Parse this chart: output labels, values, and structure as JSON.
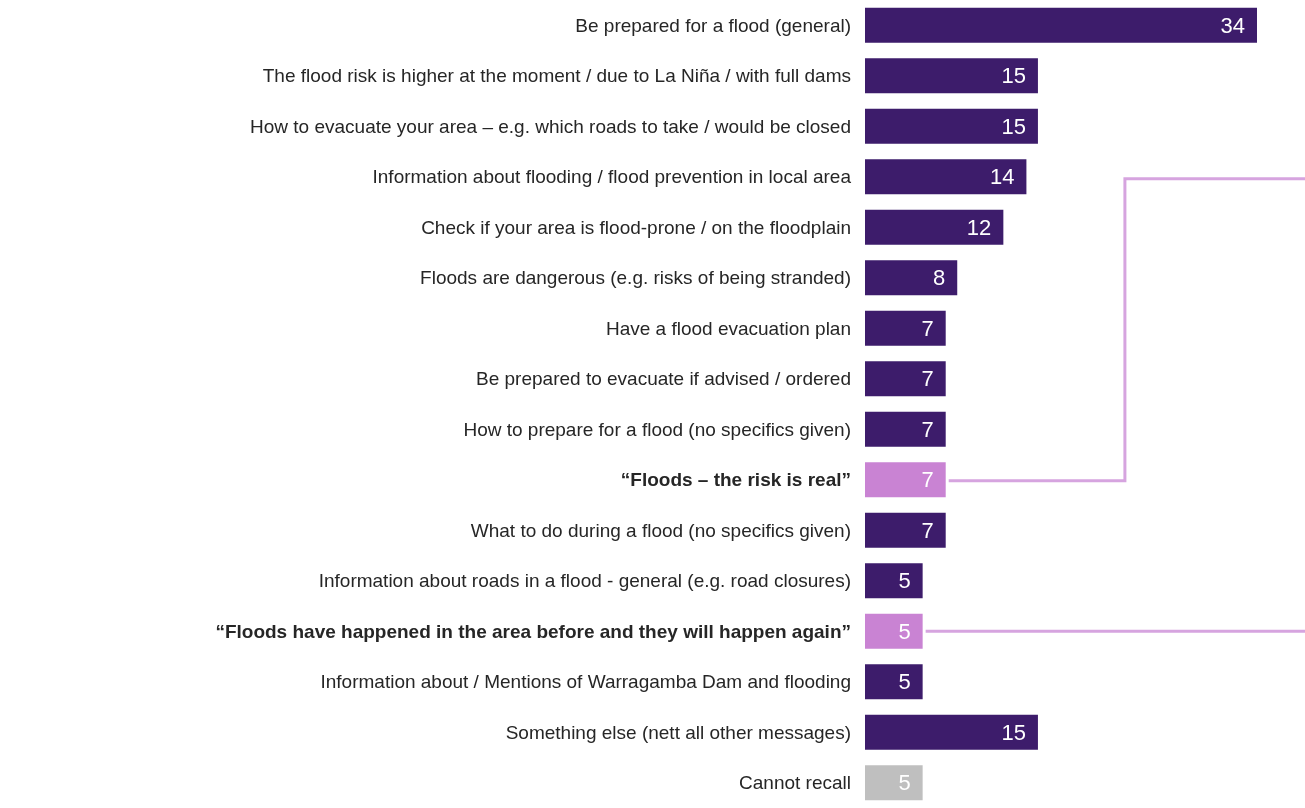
{
  "chart_data": {
    "type": "bar",
    "orientation": "horizontal",
    "data_labels": true,
    "grid": false,
    "categories": [
      "Be prepared for a flood (general)",
      "The flood risk is higher at the moment / due to La Niña / with full dams",
      "How to evacuate your area – e.g. which roads to take / would be closed",
      "Information about flooding / flood prevention in local area",
      "Check if your area is flood-prone / on the floodplain",
      "Floods are dangerous (e.g. risks of being stranded)",
      "Have a flood evacuation plan",
      "Be prepared to evacuate if advised / ordered",
      "How to prepare for a flood (no specifics given)",
      "“Floods – the risk is real”",
      "What to do during a flood (no specifics given)",
      "Information about roads in a flood - general (e.g. road closures)",
      "“Floods have happened in the area before and they will happen again”",
      "Information about / Mentions of Warragamba Dam and flooding",
      "Something else (nett all other messages)",
      "Cannot recall"
    ],
    "values": [
      34,
      15,
      15,
      14,
      12,
      8,
      7,
      7,
      7,
      7,
      7,
      5,
      5,
      5,
      15,
      5
    ],
    "colors": [
      "#3d1c6b",
      "#3d1c6b",
      "#3d1c6b",
      "#3d1c6b",
      "#3d1c6b",
      "#3d1c6b",
      "#3d1c6b",
      "#3d1c6b",
      "#3d1c6b",
      "#c983d3",
      "#3d1c6b",
      "#3d1c6b",
      "#c983d3",
      "#3d1c6b",
      "#3d1c6b",
      "#bfbfbf"
    ]
  }
}
